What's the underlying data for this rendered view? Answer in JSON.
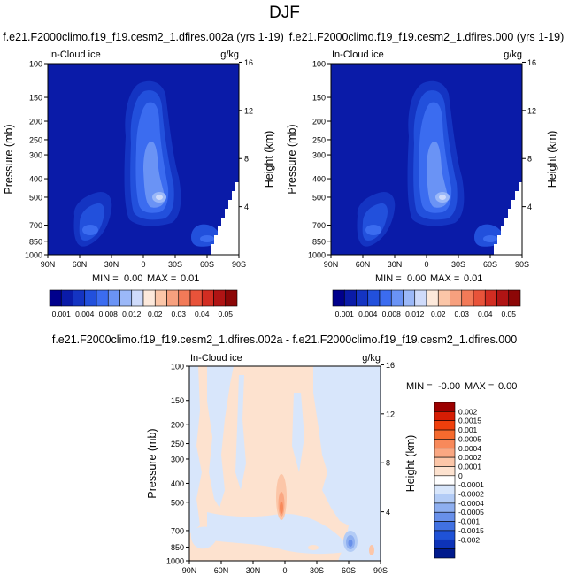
{
  "page": {
    "title": "DJF"
  },
  "chart_data": [
    {
      "type": "heatmap",
      "title": "f.e21.F2000climo.f19_f19.cesm2_1.dfires.002a (yrs 1-19)",
      "left_label": "In-Cloud ice",
      "right_label": "g/kg",
      "xlabel": "",
      "ylabel": "Pressure (mb)",
      "y2label": "Height (km)",
      "x_ticks": [
        "90N",
        "60N",
        "30N",
        "0",
        "30S",
        "60S",
        "90S"
      ],
      "y_ticks": [
        "100",
        "150",
        "200",
        "250",
        "300",
        "400",
        "500",
        "700",
        "850",
        "1000"
      ],
      "y2_ticks": [
        "16",
        "12",
        "8",
        "4"
      ],
      "xlim": [
        90,
        -90
      ],
      "ylim": [
        1000,
        100
      ],
      "y_scale": "log",
      "stats": {
        "min_label": "MIN =",
        "min": "0.00",
        "max_label": "MAX =",
        "max": "0.01"
      },
      "colorbar": {
        "orientation": "horizontal",
        "labels": [
          "0.001",
          "0.004",
          "0.008",
          "0.012",
          "0.02",
          "0.03",
          "0.04",
          "0.05"
        ],
        "colors": [
          "#00008c",
          "#0a1ba8",
          "#1434c2",
          "#2250dc",
          "#3b6cf0",
          "#6a93f5",
          "#9bb8f8",
          "#cfdbfb",
          "#fde9db",
          "#fbc6a8",
          "#f7a07e",
          "#f27a58",
          "#e8533a",
          "#d22d22",
          "#b01414",
          "#8c0707"
        ]
      }
    },
    {
      "type": "heatmap",
      "title": "f.e21.F2000climo.f19_f19.cesm2_1.dfires.000 (yrs 1-19)",
      "left_label": "In-Cloud ice",
      "right_label": "g/kg",
      "xlabel": "",
      "ylabel": "Pressure (mb)",
      "y2label": "Height (km)",
      "x_ticks": [
        "90N",
        "60N",
        "30N",
        "0",
        "30S",
        "60S",
        "90S"
      ],
      "y_ticks": [
        "100",
        "150",
        "200",
        "250",
        "300",
        "400",
        "500",
        "700",
        "850",
        "1000"
      ],
      "y2_ticks": [
        "16",
        "12",
        "8",
        "4"
      ],
      "xlim": [
        90,
        -90
      ],
      "ylim": [
        1000,
        100
      ],
      "y_scale": "log",
      "stats": {
        "min_label": "MIN =",
        "min": "0.00",
        "max_label": "MAX =",
        "max": "0.01"
      },
      "colorbar": {
        "orientation": "horizontal",
        "labels": [
          "0.001",
          "0.004",
          "0.008",
          "0.012",
          "0.02",
          "0.03",
          "0.04",
          "0.05"
        ],
        "colors": [
          "#00008c",
          "#0a1ba8",
          "#1434c2",
          "#2250dc",
          "#3b6cf0",
          "#6a93f5",
          "#9bb8f8",
          "#cfdbfb",
          "#fde9db",
          "#fbc6a8",
          "#f7a07e",
          "#f27a58",
          "#e8533a",
          "#d22d22",
          "#b01414",
          "#8c0707"
        ]
      }
    },
    {
      "type": "heatmap",
      "title": "f.e21.F2000climo.f19_f19.cesm2_1.dfires.002a - f.e21.F2000climo.f19_f19.cesm2_1.dfires.000",
      "left_label": "In-Cloud ice",
      "right_label": "g/kg",
      "xlabel": "",
      "ylabel": "Pressure (mb)",
      "y2label": "Height (km)",
      "x_ticks": [
        "90N",
        "60N",
        "30N",
        "0",
        "30S",
        "60S",
        "90S"
      ],
      "y_ticks": [
        "100",
        "150",
        "200",
        "250",
        "300",
        "400",
        "500",
        "700",
        "850",
        "1000"
      ],
      "y2_ticks": [
        "16",
        "12",
        "8",
        "4"
      ],
      "xlim": [
        90,
        -90
      ],
      "ylim": [
        1000,
        100
      ],
      "y_scale": "log",
      "stats": {
        "min_label": "MIN =",
        "min": "-0.00",
        "max_label": "MAX =",
        "max": "0.00"
      },
      "colorbar": {
        "orientation": "vertical",
        "labels": [
          "0.002",
          "0.0015",
          "0.001",
          "0.0005",
          "0.0004",
          "0.0002",
          "0.0001",
          "0",
          "-0.0001",
          "-0.0002",
          "-0.0004",
          "-0.0005",
          "-0.001",
          "-0.0015",
          "-0.002"
        ],
        "colors": [
          "#9c0000",
          "#d61d04",
          "#ef3f0c",
          "#f56a2e",
          "#f8895a",
          "#faa782",
          "#fcc6a8",
          "#fde2cf",
          "#ffffff",
          "#d8e6fb",
          "#b3ccf6",
          "#8eaff0",
          "#6890ea",
          "#4171e2",
          "#1f52d6",
          "#0d33b8",
          "#001a8c"
        ]
      }
    }
  ]
}
